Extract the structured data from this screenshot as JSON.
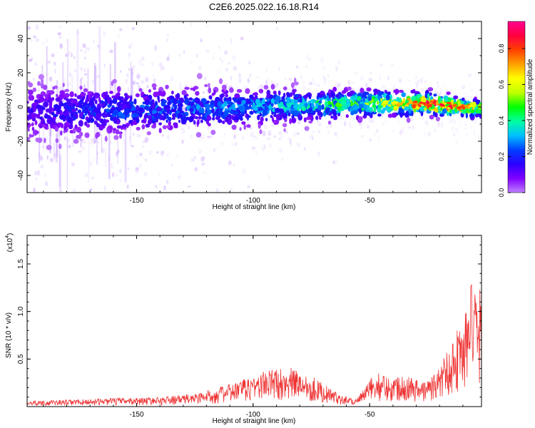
{
  "title": "C2E6.2025.022.16.18.R14",
  "colors": {
    "snr_line": "#ee3333",
    "axis": "#000000",
    "colormap": [
      "#c080ff",
      "#8000ff",
      "#2a00ff",
      "#0040ff",
      "#00c0ff",
      "#00ffa0",
      "#00ff00",
      "#c0ff00",
      "#ffff00",
      "#ffa000",
      "#ff4000",
      "#ff0040",
      "#ff0090"
    ]
  },
  "chart_data": [
    {
      "type": "heatmap",
      "title": "C2E6.2025.022.16.18.R14",
      "xlabel": "Height of straight line (km)",
      "ylabel": "Frequency (Hz)",
      "xlim": [
        -197,
        -2
      ],
      "ylim": [
        -50,
        50
      ],
      "xticks": [
        -150,
        -100,
        -50
      ],
      "xtick_labels": [
        "-150",
        "-100",
        "-50"
      ],
      "yticks": [
        -40,
        -20,
        0,
        20,
        40
      ],
      "ytick_labels": [
        "-40",
        "-20",
        "0",
        "20",
        "40"
      ],
      "colorbar": {
        "label": "Normalized spectral amplitude",
        "range": [
          0,
          0.95
        ],
        "ticks": [
          0.0,
          0.2,
          0.4,
          0.6,
          0.8
        ],
        "tick_labels": [
          "0.0",
          "0.2",
          "0.4",
          "0.6",
          "0.8"
        ]
      },
      "ridge": {
        "center_freq_hz": [
          [
            -197,
            -3
          ],
          [
            -150,
            -2
          ],
          [
            -100,
            0
          ],
          [
            -75,
            1
          ],
          [
            -50,
            2
          ],
          [
            -25,
            2
          ],
          [
            -2,
            -1
          ]
        ],
        "peak_amplitude": [
          [
            -197,
            0.15
          ],
          [
            -160,
            0.25
          ],
          [
            -110,
            0.3
          ],
          [
            -80,
            0.4
          ],
          [
            -50,
            0.55
          ],
          [
            -35,
            0.75
          ],
          [
            -25,
            0.9
          ],
          [
            -12,
            0.85
          ],
          [
            -2,
            0.6
          ]
        ]
      }
    },
    {
      "type": "line",
      "xlabel": "Height of straight line (km)",
      "ylabel": "SNR (10 * v/v)",
      "multiplier_label": "(x10",
      "multiplier_exponent": "4",
      "multiplier_suffix": ")",
      "xlim": [
        -197,
        -2
      ],
      "ylim": [
        0,
        18000
      ],
      "xticks": [
        -150,
        -100,
        -50
      ],
      "xtick_labels": [
        "-150",
        "-100",
        "-50"
      ],
      "yticks": [
        5000,
        10000,
        15000
      ],
      "ytick_labels": [
        "0.5",
        "1.0",
        "1.5"
      ],
      "series": [
        {
          "name": "SNR",
          "envelope": {
            "x": [
              -197,
              -180,
              -160,
              -140,
              -125,
              -115,
              -105,
              -95,
              -85,
              -75,
              -65,
              -56,
              -52,
              -48,
              -44,
              -40,
              -36,
              -32,
              -28,
              -24,
              -20,
              -16,
              -12,
              -10,
              -8,
              -6,
              -4,
              -2
            ],
            "y": [
              600,
              700,
              900,
              1000,
              1400,
              2000,
              2800,
              3800,
              4200,
              3300,
              1600,
              800,
              2000,
              3600,
              3400,
              3000,
              3600,
              3200,
              2600,
              3000,
              4200,
              6500,
              8500,
              9000,
              11000,
              14000,
              11000,
              13000
            ]
          }
        }
      ]
    }
  ]
}
